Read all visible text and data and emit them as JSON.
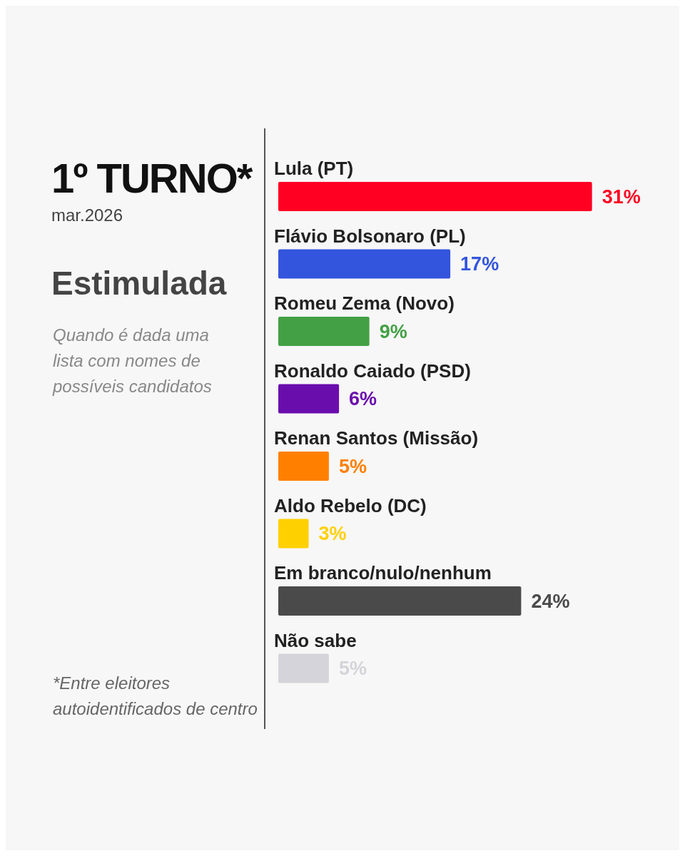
{
  "chart_data": {
    "type": "bar",
    "orientation": "horizontal",
    "title": "1º TURNO*",
    "subtitle": "mar.2026",
    "annotations": [
      "Estimulada",
      "Quando é dada uma lista com nomes de possíveis candidatos",
      "*Entre eleitores autoidentificados de centro"
    ],
    "categories": [
      "Lula (PT)",
      "Flávio Bolsonaro (PL)",
      "Romeu Zema (Novo)",
      "Ronaldo Caiado (PSD)",
      "Renan Santos (Missão)",
      "Aldo Rebelo (DC)",
      "Em branco/nulo/nenhum",
      "Não sabe"
    ],
    "values": [
      31,
      17,
      9,
      6,
      5,
      3,
      24,
      5
    ],
    "colors": [
      "#ff0022",
      "#3355dd",
      "#44a045",
      "#6a0dad",
      "#ff8000",
      "#ffd000",
      "#4a4a4a",
      "#d4d4da"
    ],
    "value_labels": [
      "31%",
      "17%",
      "9%",
      "6%",
      "5%",
      "3%",
      "24%",
      "5%"
    ],
    "grid": false,
    "legend": false
  }
}
